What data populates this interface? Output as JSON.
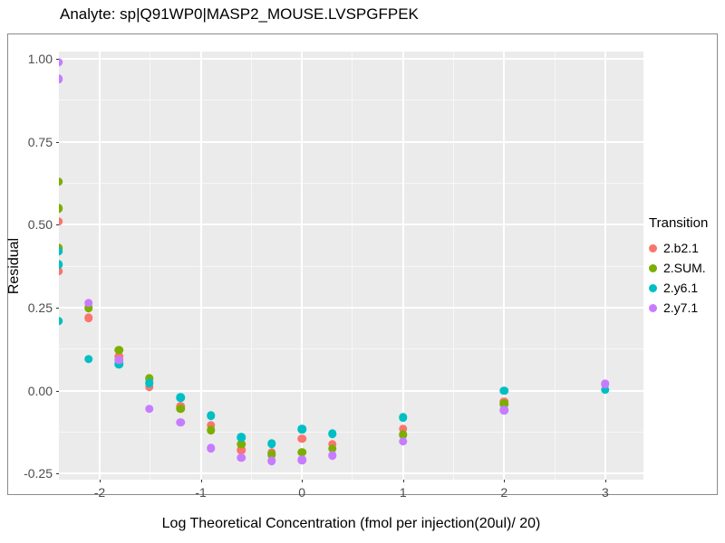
{
  "chart_data": {
    "type": "scatter",
    "title": "Analyte: sp|Q91WP0|MASP2_MOUSE.LVSPGFPEK",
    "xlabel": "Log Theoretical Concentration (fmol per injection(20ul)/ 20)",
    "ylabel": "Residual",
    "legend_title": "Transition",
    "legend_position": "right",
    "panel_bg": "#EBEBEB",
    "grid": true,
    "xlim": [
      -2.403,
      3.377
    ],
    "ylim": [
      -0.268,
      1.022
    ],
    "x_ticks": [
      -2,
      -1,
      0,
      1,
      2,
      3
    ],
    "x_tick_labels": [
      "-2",
      "-1",
      "0",
      "1",
      "2",
      "3"
    ],
    "y_ticks": [
      1.0,
      0.75,
      0.5,
      0.25,
      0.0,
      -0.25
    ],
    "y_tick_labels": [
      "1.00",
      "0.75",
      "0.50",
      "0.25",
      "0.00",
      "-0.25"
    ],
    "x_minor_ticks": [
      -1.5,
      -0.5,
      0.5,
      1.5,
      2.5
    ],
    "y_minor_ticks": [
      0.875,
      0.625,
      0.375,
      0.125,
      -0.125
    ],
    "series": [
      {
        "name": "2.b2.1",
        "color": "#F8766D",
        "points": [
          [
            -2.41,
            0.51
          ],
          [
            -2.41,
            0.36
          ],
          [
            -2.11,
            0.22
          ],
          [
            -1.81,
            0.103
          ],
          [
            -1.51,
            0.011
          ],
          [
            -1.2,
            -0.048
          ],
          [
            -0.9,
            -0.103
          ],
          [
            -0.6,
            -0.179
          ],
          [
            -0.3,
            -0.186
          ],
          [
            0.0,
            -0.145
          ],
          [
            0.3,
            -0.161
          ],
          [
            1.0,
            -0.114
          ],
          [
            2.0,
            -0.033
          ]
        ]
      },
      {
        "name": "2.SUM.",
        "color": "#7CAE00",
        "points": [
          [
            -2.41,
            0.63
          ],
          [
            -2.41,
            0.55
          ],
          [
            -2.41,
            0.43
          ],
          [
            -2.11,
            0.25
          ],
          [
            -1.81,
            0.123
          ],
          [
            -1.51,
            0.037
          ],
          [
            -1.2,
            -0.054
          ],
          [
            -0.9,
            -0.118
          ],
          [
            -0.6,
            -0.161
          ],
          [
            -0.3,
            -0.192
          ],
          [
            0.0,
            -0.185
          ],
          [
            0.3,
            -0.175
          ],
          [
            1.0,
            -0.132
          ],
          [
            2.0,
            -0.04
          ]
        ]
      },
      {
        "name": "2.y6.1",
        "color": "#00BFC4",
        "points": [
          [
            -2.41,
            0.42
          ],
          [
            -2.41,
            0.38
          ],
          [
            -2.41,
            0.21
          ],
          [
            -2.11,
            0.096
          ],
          [
            -1.81,
            0.08
          ],
          [
            -1.51,
            0.023
          ],
          [
            -1.2,
            -0.021
          ],
          [
            -0.9,
            -0.075
          ],
          [
            -0.6,
            -0.141
          ],
          [
            -0.3,
            -0.16
          ],
          [
            0.0,
            -0.116
          ],
          [
            0.3,
            -0.13
          ],
          [
            1.0,
            -0.08
          ],
          [
            2.0,
            0.0
          ],
          [
            3.0,
            0.003
          ]
        ]
      },
      {
        "name": "2.y7.1",
        "color": "#C77CFF",
        "points": [
          [
            -2.41,
            0.99
          ],
          [
            -2.41,
            0.94
          ],
          [
            -2.11,
            0.264
          ],
          [
            -1.81,
            0.093
          ],
          [
            -1.51,
            -0.055
          ],
          [
            -1.2,
            -0.096
          ],
          [
            -0.9,
            -0.173
          ],
          [
            -0.6,
            -0.202
          ],
          [
            -0.3,
            -0.212
          ],
          [
            0.0,
            -0.209
          ],
          [
            0.3,
            -0.195
          ],
          [
            1.0,
            -0.153
          ],
          [
            2.0,
            -0.059
          ],
          [
            3.0,
            0.021
          ]
        ]
      }
    ]
  }
}
